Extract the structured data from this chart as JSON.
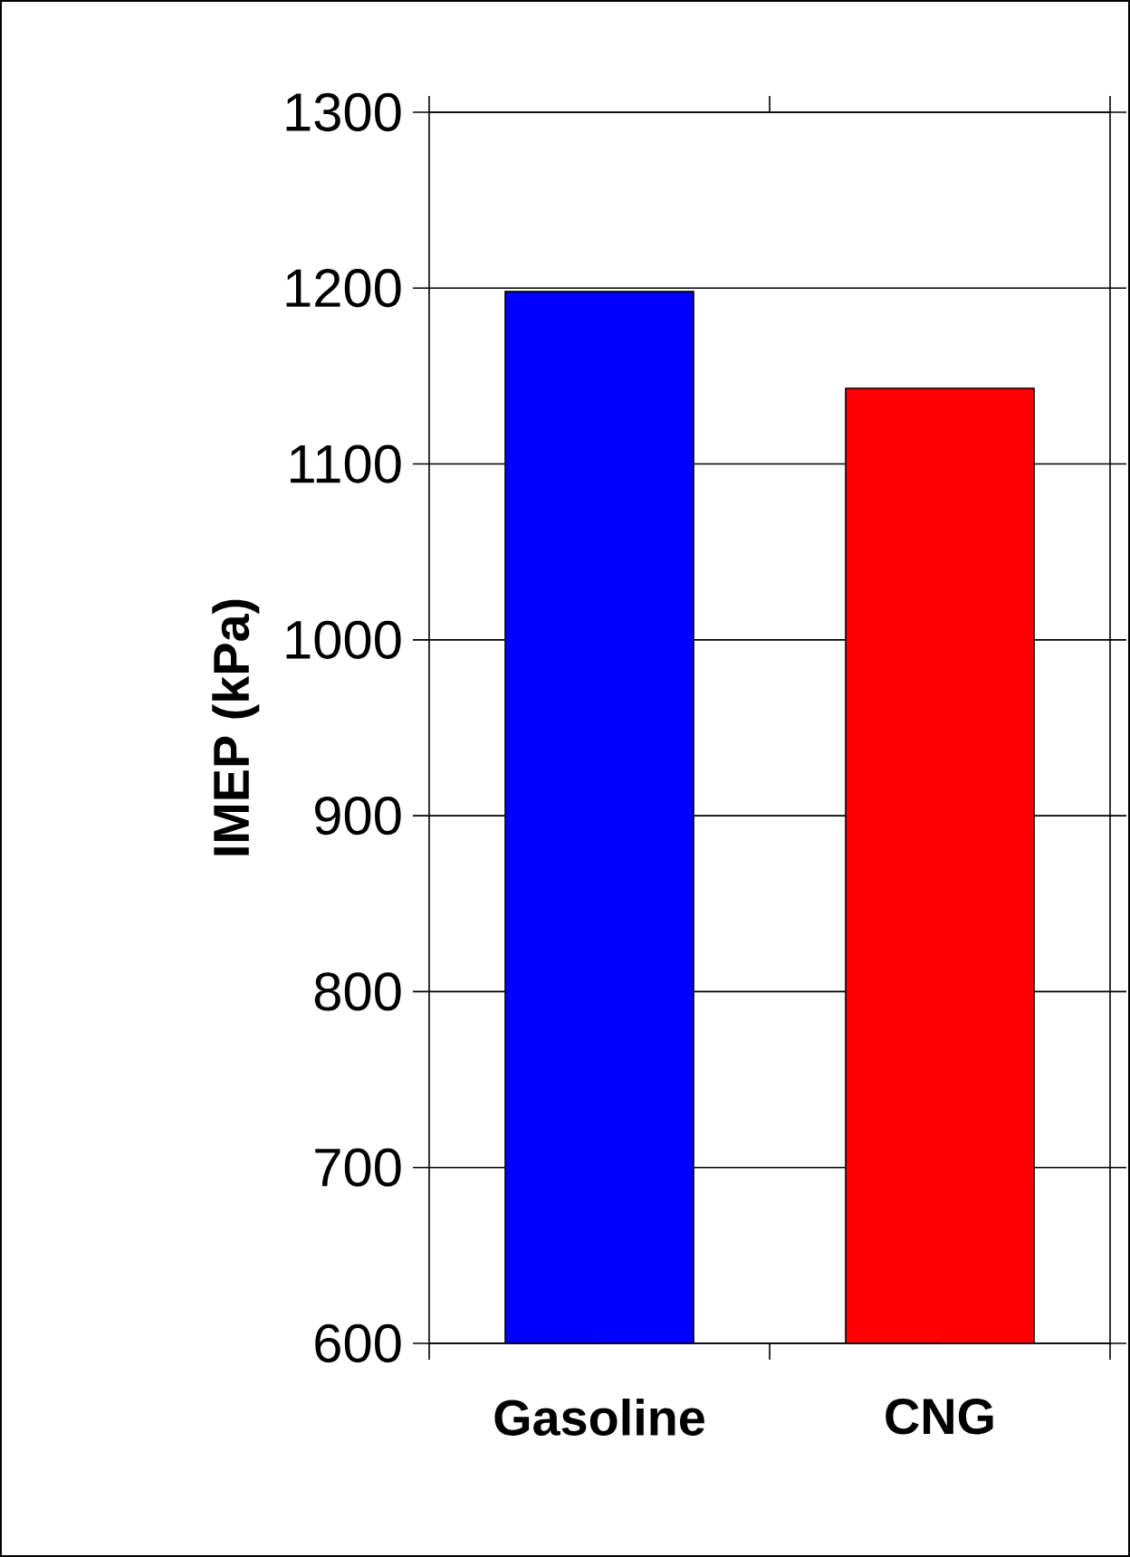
{
  "chart_data": {
    "type": "bar",
    "ylabel": "IMEP (kPa)",
    "categories": [
      "Gasoline",
      "CNG"
    ],
    "values": [
      1198,
      1143
    ],
    "colors": [
      "#0000ff",
      "#ff0000"
    ],
    "ylim": [
      600,
      1300
    ],
    "yticks": [
      600,
      700,
      800,
      900,
      1000,
      1100,
      1200,
      1300
    ],
    "grid": "y"
  }
}
